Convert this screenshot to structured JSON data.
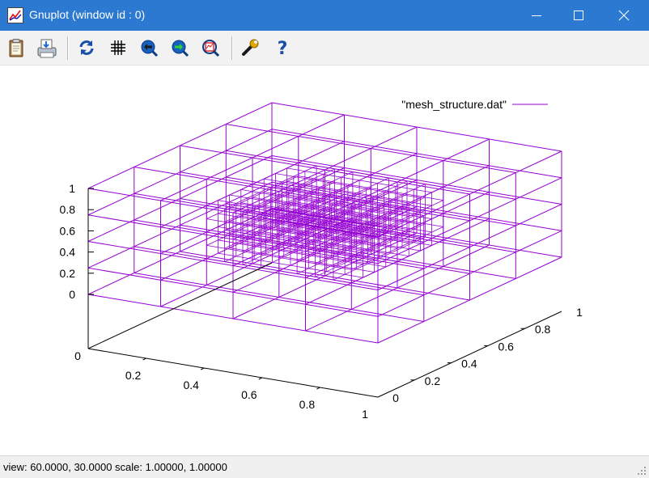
{
  "window": {
    "title": "Gnuplot (window id : 0)",
    "accent": "#2b79d0"
  },
  "toolbar": {
    "buttons": [
      {
        "name": "copy-clipboard",
        "icon": "clipboard-icon"
      },
      {
        "name": "print",
        "icon": "printer-icon"
      },
      {
        "name": "replot",
        "icon": "refresh-icon"
      },
      {
        "name": "toggle-grid",
        "icon": "grid-icon"
      },
      {
        "name": "zoom-previous",
        "icon": "arrow-left-icon"
      },
      {
        "name": "zoom-next",
        "icon": "arrow-right-icon"
      },
      {
        "name": "autoscale",
        "icon": "autoscale-icon"
      },
      {
        "name": "options",
        "icon": "wrench-icon"
      },
      {
        "name": "help",
        "icon": "question-icon"
      }
    ]
  },
  "plot": {
    "legend": "\"mesh_structure.dat\"",
    "line_color": "#9400d3",
    "view": [
      60,
      30
    ],
    "x_ticks": [
      "0",
      "0.2",
      "0.4",
      "0.6",
      "0.8",
      "1"
    ],
    "y_ticks": [
      "0",
      "0.2",
      "0.4",
      "0.6",
      "0.8",
      "1"
    ],
    "z_ticks": [
      "0",
      "0.2",
      "0.4",
      "0.6",
      "0.8",
      "1"
    ]
  },
  "status": {
    "text": "view:  60.0000,  30.0000   scale:  1.00000,  1.00000"
  }
}
